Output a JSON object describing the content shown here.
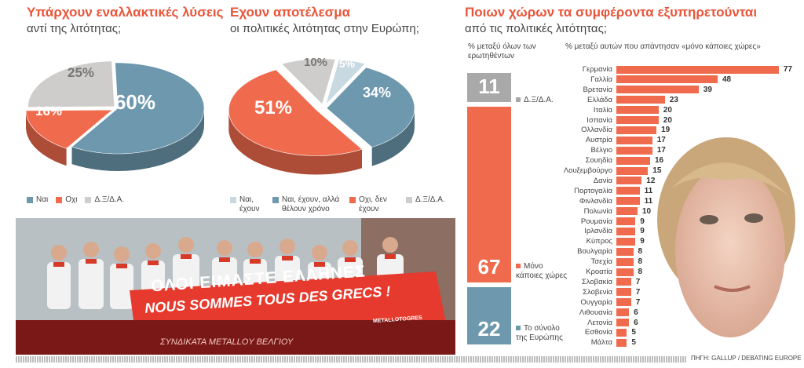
{
  "colors": {
    "blue": "#6d98ae",
    "salmon": "#f06b4e",
    "grey": "#cfcdcb",
    "lightblue": "#c8d9e2",
    "stripe": "#bdbdbd",
    "red_title": "#e8553a"
  },
  "chart1": {
    "title": "Υπάρχουν εναλλακτικές λύσεις",
    "subtitle": "αντί της λιτότητας;",
    "labels": [
      "60%",
      "16%",
      "25%"
    ],
    "legend": [
      "Ναι",
      "Οχι",
      "Δ.Ξ/Δ.Α."
    ]
  },
  "chart2": {
    "title": "Εχουν αποτέλεσμα",
    "subtitle": "οι πολιτικές λιτότητας στην Ευρώπη;",
    "labels": [
      "34%",
      "51%",
      "10%",
      "5%"
    ],
    "legend": [
      "Ναι, έχουν",
      "Ναι, έχουν, αλλά θέλουν χρόνο",
      "Οχι, δεν έχουν",
      "Δ.Ξ/Δ.Α."
    ]
  },
  "chart3": {
    "title": "Ποιων χώρων τα συμφέροντα εξυπηρετούνται",
    "subtitle": "από τις πολιτικές λιτότητας;",
    "left_header": "% μεταξύ όλων των ερωτηθέντων",
    "right_header": "% μεταξύ αυτών που απάντησαν «μόνο κάποιες χώρες»",
    "stack_labels": [
      "Δ.Ξ/Δ.Α.",
      "Μόνο κάποιες χώρες",
      "Το σύνολο της Ευρώπης"
    ]
  },
  "photo": {
    "banner_line1": "ΟΛΟΙ ΕΙΜΑΣΤΕ ΕΛΛΗΝΕΣ",
    "banner_line2": "NOUS SOMMES TOUS DES GRECS !",
    "banner_bottom": "ΣΥΝΔΙΚΑΤΑ METALLOY ΒΕΛΓΙΟΥ",
    "banner_logo": "METALLOTOGRES"
  },
  "source": "ΠΗΓΗ: GALLUP / DEBATING EUROPE",
  "chart_data": [
    {
      "type": "pie",
      "title": "Υπάρχουν εναλλακτικές λύσεις αντί της λιτότητας;",
      "categories": [
        "Ναι",
        "Οχι",
        "Δ.Ξ/Δ.Α."
      ],
      "values": [
        60,
        16,
        25
      ]
    },
    {
      "type": "pie",
      "title": "Εχουν αποτέλεσμα οι πολιτικές λιτότητας στην Ευρώπη;",
      "categories": [
        "Ναι, έχουν",
        "Ναι, έχουν, αλλά θέλουν χρόνο",
        "Οχι, δεν έχουν",
        "Δ.Ξ/Δ.Α."
      ],
      "values": [
        5,
        34,
        51,
        10
      ]
    },
    {
      "type": "bar",
      "title": "Ποιων χώρων τα συμφέροντα εξυπηρετούνται από τις πολιτικές λιτότητας;",
      "ylabel": "% μεταξύ όλων των ερωτηθέντων",
      "categories": [
        "Δ.Ξ/Δ.Α.",
        "Μόνο κάποιες χώρες",
        "Το σύνολο της Ευρώπης"
      ],
      "values": [
        11,
        67,
        22
      ]
    },
    {
      "type": "bar",
      "title": "",
      "xlabel": "% μεταξύ αυτών που απάντησαν «μόνο κάποιες χώρες»",
      "categories": [
        "Γερμανία",
        "Γαλλία",
        "Βρετανία",
        "Ελλάδα",
        "Ιταλία",
        "Ισπανία",
        "Ολλανδία",
        "Αυστρία",
        "Βέλγιο",
        "Σουηδία",
        "Λουξεμβούργο",
        "Δανία",
        "Πορτογαλία",
        "Φινλανδία",
        "Πολωνία",
        "Ρουμανία",
        "Ιρλανδία",
        "Κύπρος",
        "Βουλγαρία",
        "Τσεχία",
        "Κροατία",
        "Σλοβακία",
        "Σλοβενία",
        "Ουγγαρία",
        "Λιθουανία",
        "Λετονία",
        "Εσθονία",
        "Μάλτα"
      ],
      "values": [
        77,
        48,
        39,
        23,
        20,
        20,
        19,
        17,
        17,
        16,
        15,
        12,
        11,
        11,
        10,
        9,
        9,
        9,
        8,
        8,
        8,
        7,
        7,
        7,
        6,
        6,
        5,
        5
      ]
    }
  ]
}
